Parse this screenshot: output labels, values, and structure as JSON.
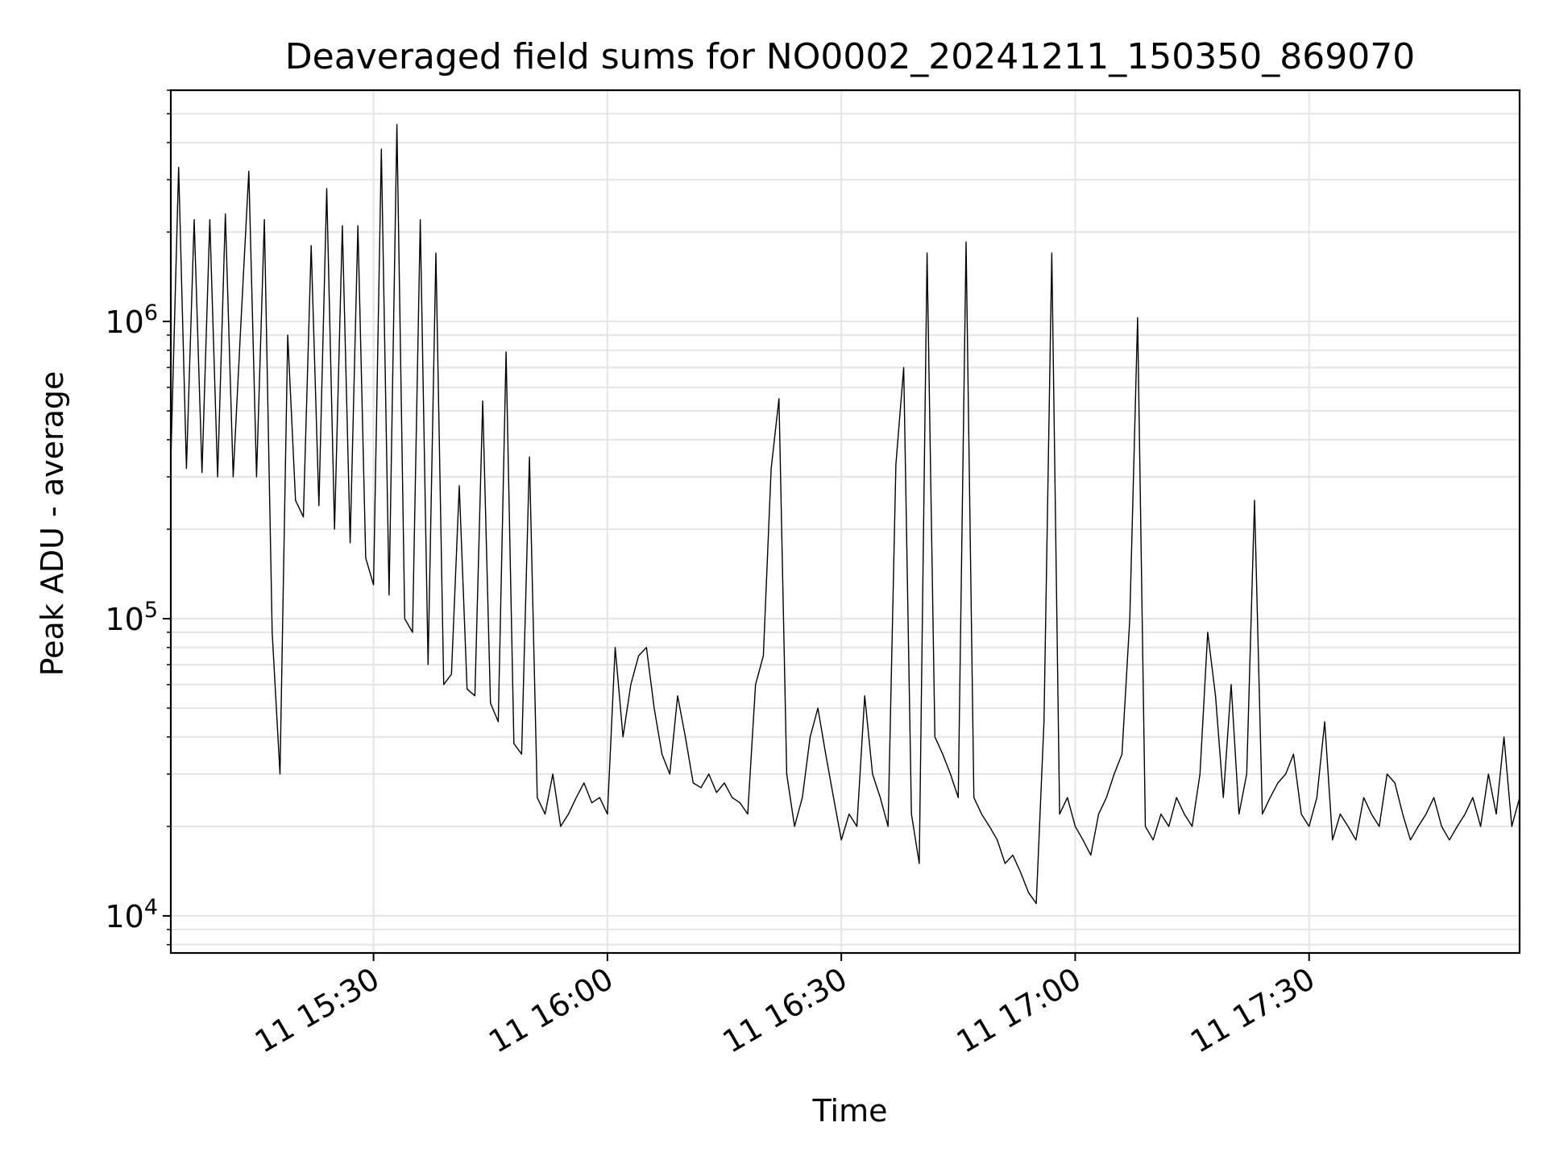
{
  "chart_data": {
    "type": "line",
    "title": "Deaveraged field sums for NO0002_20241211_150350_869070",
    "xlabel": "Time",
    "ylabel": "Peak ADU - average",
    "y_scale": "log",
    "y_tick_base": "10",
    "y_ticks": [
      {
        "value": 10000,
        "exp": "4"
      },
      {
        "value": 100000,
        "exp": "5"
      },
      {
        "value": 1000000,
        "exp": "6"
      }
    ],
    "x_ticks": [
      {
        "value": "15:30",
        "label": "11 15:30"
      },
      {
        "value": "16:00",
        "label": "11 16:00"
      },
      {
        "value": "16:30",
        "label": "11 16:30"
      },
      {
        "value": "17:00",
        "label": "11 17:00"
      },
      {
        "value": "17:30",
        "label": "11 17:30"
      }
    ],
    "xlim": [
      "15:04",
      "17:57"
    ],
    "ylim": [
      7500,
      6000000
    ],
    "grid": true,
    "line_color": "#000000",
    "series": [
      {
        "x": [
          "15:04",
          "15:05",
          "15:06",
          "15:07",
          "15:08",
          "15:09",
          "15:10",
          "15:11",
          "15:12",
          "15:13",
          "15:14",
          "15:15",
          "15:16",
          "15:17",
          "15:18",
          "15:19",
          "15:20",
          "15:21",
          "15:22",
          "15:23",
          "15:24",
          "15:25",
          "15:26",
          "15:27",
          "15:28",
          "15:29",
          "15:30",
          "15:31",
          "15:32",
          "15:33",
          "15:34",
          "15:35",
          "15:36",
          "15:37",
          "15:38",
          "15:39",
          "15:40",
          "15:41",
          "15:42",
          "15:43",
          "15:44",
          "15:45",
          "15:46",
          "15:47",
          "15:48",
          "15:49",
          "15:50",
          "15:51",
          "15:52",
          "15:53",
          "15:54",
          "15:55",
          "15:56",
          "15:57",
          "15:58",
          "15:59",
          "16:00",
          "16:01",
          "16:02",
          "16:03",
          "16:04",
          "16:05",
          "16:06",
          "16:07",
          "16:08",
          "16:09",
          "16:10",
          "16:11",
          "16:12",
          "16:13",
          "16:14",
          "16:15",
          "16:16",
          "16:17",
          "16:18",
          "16:19",
          "16:20",
          "16:21",
          "16:22",
          "16:23",
          "16:24",
          "16:25",
          "16:26",
          "16:27",
          "16:28",
          "16:29",
          "16:30",
          "16:31",
          "16:32",
          "16:33",
          "16:34",
          "16:35",
          "16:36",
          "16:37",
          "16:38",
          "16:39",
          "16:40",
          "16:41",
          "16:42",
          "16:43",
          "16:44",
          "16:45",
          "16:46",
          "16:47",
          "16:48",
          "16:49",
          "16:50",
          "16:51",
          "16:52",
          "16:53",
          "16:54",
          "16:55",
          "16:56",
          "16:57",
          "16:58",
          "16:59",
          "17:00",
          "17:01",
          "17:02",
          "17:03",
          "17:04",
          "17:05",
          "17:06",
          "17:07",
          "17:08",
          "17:09",
          "17:10",
          "17:11",
          "17:12",
          "17:13",
          "17:14",
          "17:15",
          "17:16",
          "17:17",
          "17:18",
          "17:19",
          "17:20",
          "17:21",
          "17:22",
          "17:23",
          "17:24",
          "17:25",
          "17:26",
          "17:27",
          "17:28",
          "17:29",
          "17:30",
          "17:31",
          "17:32",
          "17:33",
          "17:34",
          "17:35",
          "17:36",
          "17:37",
          "17:38",
          "17:39",
          "17:40",
          "17:41",
          "17:42",
          "17:43",
          "17:44",
          "17:45",
          "17:46",
          "17:47",
          "17:48",
          "17:49",
          "17:50",
          "17:51",
          "17:52",
          "17:53",
          "17:54",
          "17:55",
          "17:56",
          "17:57"
        ],
        "y": [
          340000,
          3300000,
          320000,
          2200000,
          310000,
          2200000,
          300000,
          2300000,
          300000,
          1000000,
          3200000,
          300000,
          2200000,
          90000,
          30000,
          900000,
          250000,
          220000,
          1800000,
          240000,
          2800000,
          200000,
          2100000,
          180000,
          2100000,
          160000,
          130000,
          3800000,
          120000,
          4600000,
          100000,
          90000,
          2200000,
          70000,
          1700000,
          60000,
          65000,
          280000,
          58000,
          55000,
          540000,
          52000,
          45000,
          790000,
          38000,
          35000,
          350000,
          25000,
          22000,
          30000,
          20000,
          22000,
          25000,
          28000,
          24000,
          25000,
          22000,
          80000,
          40000,
          60000,
          75000,
          80000,
          50000,
          35000,
          30000,
          55000,
          40000,
          28000,
          27000,
          30000,
          26000,
          28000,
          25000,
          24000,
          22000,
          60000,
          75000,
          320000,
          550000,
          30000,
          20000,
          25000,
          40000,
          50000,
          35000,
          25000,
          18000,
          22000,
          20000,
          55000,
          30000,
          25000,
          20000,
          330000,
          700000,
          22000,
          15000,
          1700000,
          40000,
          35000,
          30000,
          25000,
          1850000,
          25000,
          22000,
          20000,
          18000,
          15000,
          16000,
          14000,
          12000,
          11000,
          45000,
          1700000,
          22000,
          25000,
          20000,
          18000,
          16000,
          22000,
          25000,
          30000,
          35000,
          100000,
          1030000,
          20000,
          18000,
          22000,
          20000,
          25000,
          22000,
          20000,
          30000,
          90000,
          55000,
          25000,
          60000,
          22000,
          30000,
          250000,
          22000,
          25000,
          28000,
          30000,
          35000,
          22000,
          20000,
          25000,
          45000,
          18000,
          22000,
          20000,
          18000,
          25000,
          22000,
          20000,
          30000,
          28000,
          22000,
          18000,
          20000,
          22000,
          25000,
          20000,
          18000,
          20000,
          22000,
          25000,
          20000,
          30000,
          22000,
          40000,
          20000,
          25000
        ]
      }
    ]
  }
}
